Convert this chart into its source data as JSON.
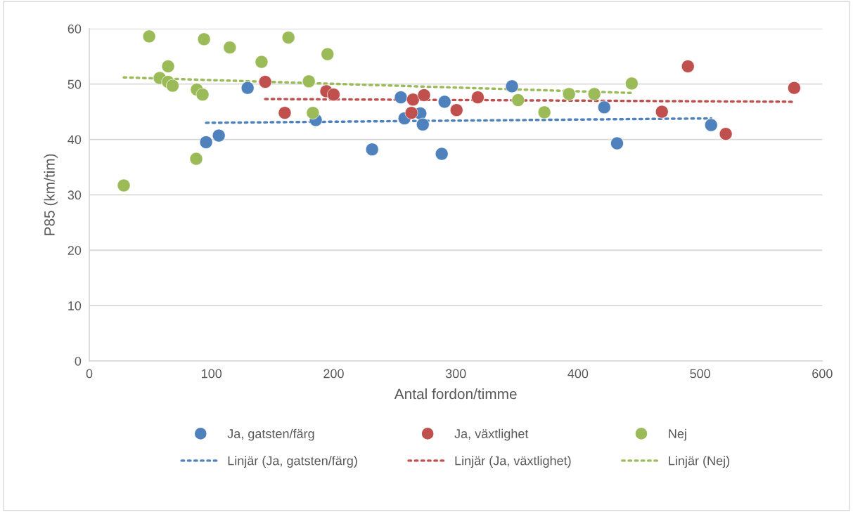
{
  "chart_data": {
    "type": "scatter",
    "xlabel": "Antal fordon/timme",
    "ylabel": "P85 (km/tim)",
    "xlim": [
      0,
      600
    ],
    "xticks": [
      0,
      100,
      200,
      300,
      400,
      500,
      600
    ],
    "ylim": [
      0,
      60
    ],
    "yticks": [
      0,
      10,
      20,
      30,
      40,
      50,
      60
    ],
    "grid": "y",
    "legend": "bottom",
    "series": [
      {
        "name": "Ja, gatsten/färg",
        "marker": "circle",
        "color": "#4f81bd",
        "x": [
          95.6,
          106,
          129.6,
          185.4,
          231.5,
          255,
          258,
          271,
          273,
          288.5,
          290.8,
          346,
          421.5,
          432,
          509
        ],
        "values": [
          39.5,
          40.7,
          49.3,
          43.5,
          38.2,
          47.6,
          43.8,
          44.7,
          42.7,
          37.4,
          46.8,
          49.6,
          45.8,
          39.3,
          42.6
        ]
      },
      {
        "name": "Ja, växtlighet",
        "marker": "circle",
        "color": "#c0504d",
        "x": [
          144,
          160,
          194,
          200,
          263.7,
          265,
          274,
          300.6,
          318,
          468.7,
          490,
          521,
          577
        ],
        "values": [
          50.4,
          44.8,
          48.7,
          48.1,
          44.8,
          47.2,
          48.0,
          45.3,
          47.6,
          45.0,
          53.2,
          41.0,
          49.3
        ]
      },
      {
        "name": "Nej",
        "marker": "circle",
        "color": "#9bbb59",
        "x": [
          28.2,
          49,
          57.6,
          64.5,
          64.4,
          68.2,
          88,
          87.5,
          92.7,
          93.9,
          115,
          141,
          163,
          179.7,
          183,
          195,
          351,
          372.5,
          392.7,
          413.4,
          444
        ],
        "values": [
          31.7,
          58.6,
          51.1,
          53.2,
          50.4,
          49.7,
          49.0,
          36.5,
          48.1,
          58.1,
          56.6,
          54.0,
          58.4,
          50.5,
          44.8,
          55.4,
          47.1,
          44.9,
          48.2,
          48.2,
          50.1
        ]
      },
      {
        "name": "Linjär (Ja, gatsten/färg)",
        "type": "line",
        "line_style": "dotted",
        "color": "#4f81bd",
        "x": [
          95.6,
          509
        ],
        "values": [
          43.0,
          43.8
        ]
      },
      {
        "name": "Linjär (Ja, växtlighet)",
        "type": "line",
        "line_style": "dotted",
        "color": "#c0504d",
        "x": [
          144,
          577
        ],
        "values": [
          47.3,
          46.8
        ]
      },
      {
        "name": "Linjär (Nej)",
        "type": "line",
        "line_style": "dotted",
        "color": "#9bbb59",
        "x": [
          28.2,
          444
        ],
        "values": [
          51.2,
          48.4
        ]
      }
    ]
  }
}
